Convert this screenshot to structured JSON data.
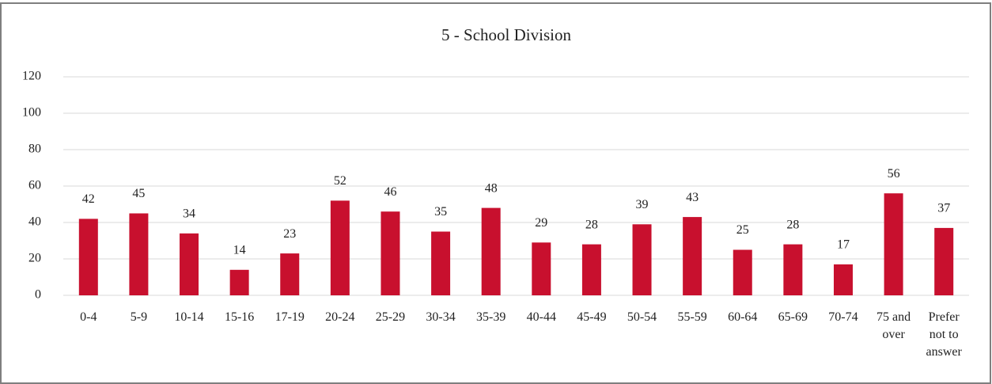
{
  "chart_data": {
    "type": "bar",
    "title": "5 - School Division",
    "categories": [
      "0-4",
      "5-9",
      "10-14",
      "15-16",
      "17-19",
      "20-24",
      "25-29",
      "30-34",
      "35-39",
      "40-44",
      "45-49",
      "50-54",
      "55-59",
      "60-64",
      "65-69",
      "70-74",
      "75 and over",
      "Prefer not to answer"
    ],
    "values": [
      42,
      45,
      34,
      14,
      23,
      52,
      46,
      35,
      48,
      29,
      28,
      39,
      43,
      25,
      28,
      17,
      56,
      37
    ],
    "color": "#c8102e",
    "ylim": [
      0,
      120
    ],
    "yticks": [
      0,
      20,
      40,
      60,
      80,
      100,
      120
    ],
    "grid": true
  }
}
